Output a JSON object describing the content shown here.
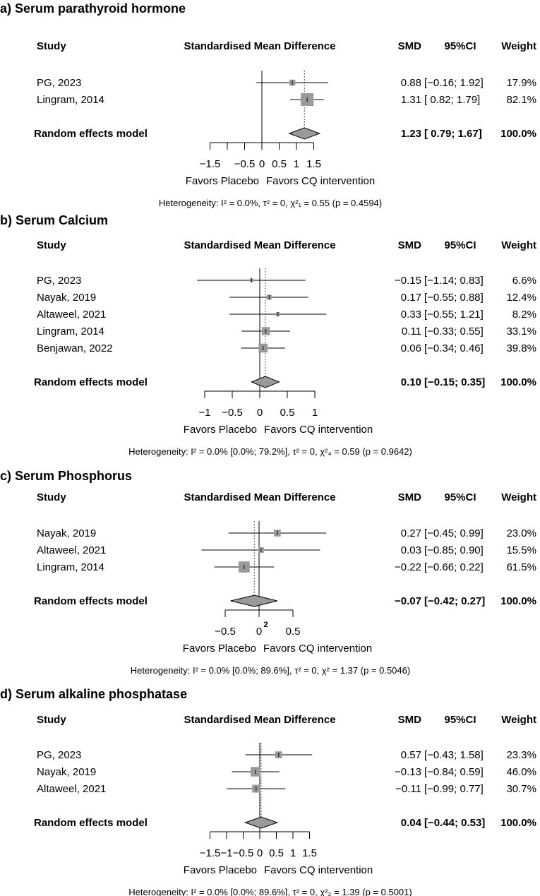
{
  "chart_data": [
    {
      "type": "forest",
      "title": "a) Serum parathyroid hormone",
      "headers": {
        "study": "Study",
        "plot": "Standardised Mean Difference",
        "smd": "SMD",
        "ci": "95%CI",
        "weight": "Weight"
      },
      "studies": [
        {
          "name": "PG, 2023",
          "smd": 0.88,
          "lo": -0.16,
          "hi": 1.92,
          "smd_text": "0.88",
          "ci_text": "[−0.16; 1.92]",
          "weight": 17.9,
          "weight_text": "17.9%"
        },
        {
          "name": "Lingram, 2014",
          "smd": 1.31,
          "lo": 0.82,
          "hi": 1.79,
          "smd_text": "1.31",
          "ci_text": "[ 0.82; 1.79]",
          "weight": 82.1,
          "weight_text": "82.1%"
        }
      ],
      "pooled": {
        "label": "Random effects model",
        "smd": 1.23,
        "lo": 0.79,
        "hi": 1.67,
        "smd_text": "1.23",
        "ci_text": "[ 0.79; 1.67]",
        "weight_text": "100.0%"
      },
      "xlim": [
        -1.5,
        1.5
      ],
      "ticks": [
        -1.5,
        -1,
        -0.5,
        0,
        0.5,
        1,
        1.5
      ],
      "tick_labels": [
        "−1.5",
        "",
        "−0.5",
        "0",
        "0.5",
        "1",
        "1.5"
      ],
      "favors_left": "Favors Placebo",
      "favors_right": "Favors CQ intervention",
      "heterogeneity": "Heterogeneity: I² = 0.0%, τ² = 0, χ²₁ = 0.55 (p = 0.4594)"
    },
    {
      "type": "forest",
      "title": "b) Serum Calcium",
      "headers": {
        "study": "Study",
        "plot": "Standardised Mean Difference",
        "smd": "SMD",
        "ci": "95%CI",
        "weight": "Weight"
      },
      "studies": [
        {
          "name": "PG, 2023",
          "smd": -0.15,
          "lo": -1.14,
          "hi": 0.83,
          "smd_text": "−0.15",
          "ci_text": "[−1.14; 0.83]",
          "weight": 6.6,
          "weight_text": "6.6%"
        },
        {
          "name": "Nayak, 2019",
          "smd": 0.17,
          "lo": -0.55,
          "hi": 0.88,
          "smd_text": "0.17",
          "ci_text": "[−0.55; 0.88]",
          "weight": 12.4,
          "weight_text": "12.4%"
        },
        {
          "name": "Altaweel, 2021",
          "smd": 0.33,
          "lo": -0.55,
          "hi": 1.21,
          "smd_text": "0.33",
          "ci_text": "[−0.55; 1.21]",
          "weight": 8.2,
          "weight_text": "8.2%"
        },
        {
          "name": "Lingram, 2014",
          "smd": 0.11,
          "lo": -0.33,
          "hi": 0.55,
          "smd_text": "0.11",
          "ci_text": "[−0.33; 0.55]",
          "weight": 33.1,
          "weight_text": "33.1%"
        },
        {
          "name": "Benjawan, 2022",
          "smd": 0.06,
          "lo": -0.34,
          "hi": 0.46,
          "smd_text": "0.06",
          "ci_text": "[−0.34; 0.46]",
          "weight": 39.8,
          "weight_text": "39.8%"
        }
      ],
      "pooled": {
        "label": "Random effects model",
        "smd": 0.1,
        "lo": -0.15,
        "hi": 0.35,
        "smd_text": "0.10",
        "ci_text": "[−0.15; 0.35]",
        "weight_text": "100.0%"
      },
      "xlim": [
        -1,
        1
      ],
      "ticks": [
        -1,
        -0.5,
        0,
        0.5,
        1
      ],
      "tick_labels": [
        "−1",
        "−0.5",
        "0",
        "0.5",
        "1"
      ],
      "favors_left": "Favors Placebo",
      "favors_right": "Favors CQ intervention",
      "heterogeneity": "Heterogeneity: I² = 0.0% [0.0%; 79.2%], τ² = 0, χ²₄ = 0.59 (p = 0.9642)"
    },
    {
      "type": "forest",
      "title": "c) Serum Phosphorus",
      "headers": {
        "study": "Study",
        "plot": "Standardised Mean Difference",
        "smd": "SMD",
        "ci": "95%CI",
        "weight": "Weight"
      },
      "studies": [
        {
          "name": "Nayak, 2019",
          "smd": 0.27,
          "lo": -0.45,
          "hi": 0.99,
          "smd_text": "0.27",
          "ci_text": "[−0.45; 0.99]",
          "weight": 23.0,
          "weight_text": "23.0%"
        },
        {
          "name": "Altaweel, 2021",
          "smd": 0.03,
          "lo": -0.85,
          "hi": 0.9,
          "smd_text": "0.03",
          "ci_text": "[−0.85; 0.90]",
          "weight": 15.5,
          "weight_text": "15.5%"
        },
        {
          "name": "Lingram, 2014",
          "smd": -0.22,
          "lo": -0.66,
          "hi": 0.22,
          "smd_text": "−0.22",
          "ci_text": "[−0.66; 0.22]",
          "weight": 61.5,
          "weight_text": "61.5%"
        }
      ],
      "pooled": {
        "label": "Random effects model",
        "smd": -0.07,
        "lo": -0.42,
        "hi": 0.27,
        "smd_text": "−0.07",
        "ci_text": "[−0.42; 0.27]",
        "weight_text": "100.0%"
      },
      "xlim": [
        -0.5,
        0.5
      ],
      "ticks": [
        -0.5,
        0,
        0.5
      ],
      "tick_labels": [
        "−0.5",
        "0",
        "0.5"
      ],
      "stray_label": "2",
      "favors_left": "Favors Placebo",
      "favors_right": "Favors CQ intervention",
      "heterogeneity": "Heterogeneity: I² = 0.0% [0.0%; 89.6%], τ² = 0, χ² = 1.37 (p = 0.5046)"
    },
    {
      "type": "forest",
      "title": "d) Serum alkaline phosphatase",
      "headers": {
        "study": "Study",
        "plot": "Standardised Mean Difference",
        "smd": "SMD",
        "ci": "95%CI",
        "weight": "Weight"
      },
      "studies": [
        {
          "name": "PG, 2023",
          "smd": 0.57,
          "lo": -0.43,
          "hi": 1.58,
          "smd_text": "0.57",
          "ci_text": "[−0.43; 1.58]",
          "weight": 23.3,
          "weight_text": "23.3%"
        },
        {
          "name": "Nayak, 2019",
          "smd": -0.13,
          "lo": -0.84,
          "hi": 0.59,
          "smd_text": "−0.13",
          "ci_text": "[−0.84; 0.59]",
          "weight": 46.0,
          "weight_text": "46.0%"
        },
        {
          "name": "Altaweel, 2021",
          "smd": -0.11,
          "lo": -0.99,
          "hi": 0.77,
          "smd_text": "−0.11",
          "ci_text": "[−0.99; 0.77]",
          "weight": 30.7,
          "weight_text": "30.7%"
        }
      ],
      "pooled": {
        "label": "Random effects model",
        "smd": 0.04,
        "lo": -0.44,
        "hi": 0.53,
        "smd_text": "0.04",
        "ci_text": "[−0.44; 0.53]",
        "weight_text": "100.0%"
      },
      "xlim": [
        -1.5,
        1.5
      ],
      "ticks": [
        -1.5,
        -1,
        -0.5,
        0,
        0.5,
        1,
        1.5
      ],
      "tick_labels": [
        "−1.5",
        "−1",
        "−0.5",
        "0",
        "0.5",
        "1",
        "1.5"
      ],
      "favors_left": "Favors Placebo",
      "favors_right": "Favors CQ intervention",
      "heterogeneity": "Heterogeneity: I² = 0.0% [0.0%; 89.6%], τ² = 0, χ²₂ = 1.39 (p = 0.5001)"
    }
  ]
}
